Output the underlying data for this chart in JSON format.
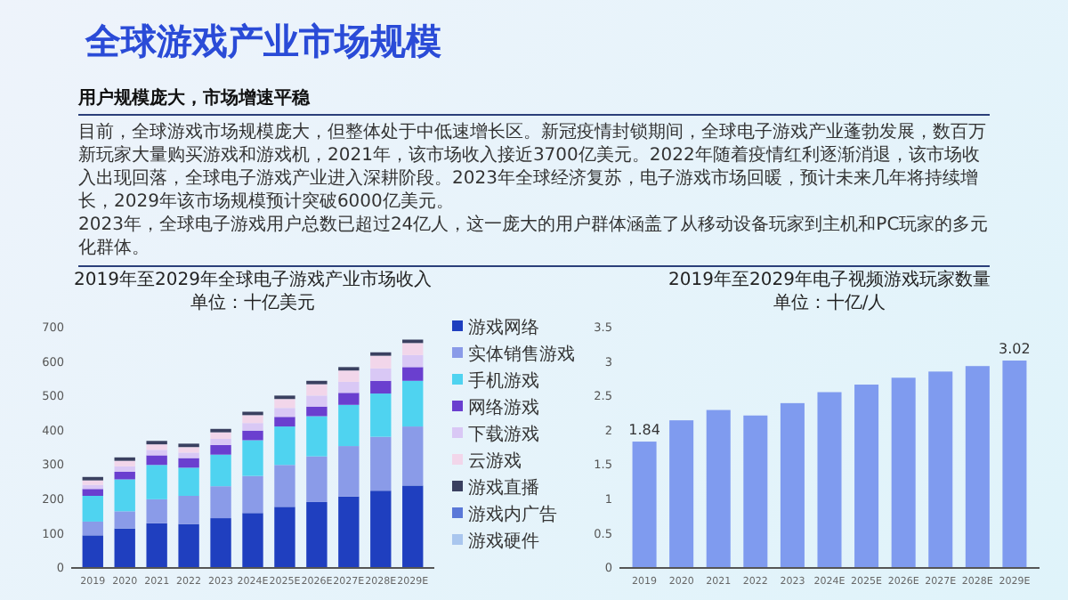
{
  "chart_data": [
    {
      "type": "other",
      "title": "全球游戏产业市场规模",
      "subtitle": "用户规模庞大，市场增速平稳",
      "annotations": [
        "目前，全球游戏市场规模庞大，但整体处于中低速增长区。新冠疫情封锁期间，全球电子游戏产业蓬勃发展，数百万新玩家大量购买游戏和游戏机，2021年，该市场收入接近3700亿美元。2022年随着疫情红利逐渐消退，该市场收入出现回落，全球电子游戏产业进入深耕阶段。2023年全球经济复苏，电子游戏市场回暖，预计未来几年将持续增长，2029年该市场规模预计突破6000亿美元。",
        "2023年，全球电子游戏用户总数已超过24亿人，这一庞大的用户群体涵盖了从移动设备玩家到主机和PC玩家的多元化群体。"
      ]
    },
    {
      "type": "bar",
      "stacked": true,
      "title": "2019年至2029年全球电子游戏产业市场收入",
      "subtitle": "单位：十亿美元",
      "categories": [
        "2019",
        "2020",
        "2021",
        "2022",
        "2023",
        "2024E",
        "2025E",
        "2026E",
        "2027E",
        "2028E",
        "2029E"
      ],
      "ylim": [
        0,
        700
      ],
      "yticks": [
        0,
        100,
        200,
        300,
        400,
        500,
        600,
        700
      ],
      "legend": "right",
      "grid": false,
      "series": [
        {
          "name": "游戏网络",
          "color": "#1f3fbf",
          "values": [
            95,
            115,
            130,
            128,
            145,
            160,
            178,
            192,
            208,
            225,
            240
          ]
        },
        {
          "name": "实体销售游戏",
          "color": "#8a9be8",
          "values": [
            40,
            50,
            70,
            82,
            93,
            108,
            122,
            133,
            147,
            157,
            172
          ]
        },
        {
          "name": "手机游戏",
          "color": "#4fd3f0",
          "values": [
            75,
            93,
            100,
            82,
            92,
            104,
            112,
            117,
            120,
            126,
            133
          ]
        },
        {
          "name": "网络游戏",
          "color": "#6a3fcf",
          "values": [
            20,
            22,
            28,
            28,
            28,
            28,
            28,
            28,
            35,
            37,
            40
          ]
        },
        {
          "name": "下载游戏",
          "color": "#d9c8f5",
          "values": [
            12,
            16,
            16,
            16,
            18,
            22,
            26,
            32,
            32,
            36,
            35
          ]
        },
        {
          "name": "云游戏",
          "color": "#f2d6ea",
          "values": [
            13,
            16,
            16,
            16,
            19,
            23,
            26,
            33,
            33,
            37,
            35
          ]
        },
        {
          "name": "游戏直播",
          "color": "#3a4060",
          "values": [
            10,
            10,
            10,
            10,
            10,
            10,
            10,
            10,
            10,
            10,
            10
          ]
        },
        {
          "name": "游戏内广告",
          "color": "#5a78d8",
          "values": [
            null,
            null,
            null,
            null,
            null,
            null,
            null,
            null,
            null,
            null,
            null
          ]
        },
        {
          "name": "游戏硬件",
          "color": "#a9c6ee",
          "values": [
            null,
            null,
            null,
            null,
            null,
            null,
            null,
            null,
            null,
            null,
            null
          ]
        }
      ]
    },
    {
      "type": "bar",
      "title": "2019年至2029年电子视频游戏玩家数量",
      "subtitle": "单位：十亿/人",
      "categories": [
        "2019",
        "2020",
        "2021",
        "2022",
        "2023",
        "2024E",
        "2025E",
        "2026E",
        "2027E",
        "2028E",
        "2029E"
      ],
      "ylim": [
        0,
        3.5
      ],
      "yticks": [
        0,
        0.5,
        1,
        1.5,
        2,
        2.5,
        3,
        3.5
      ],
      "grid": false,
      "legend": false,
      "series": [
        {
          "color": "#7f9bef",
          "values": [
            1.84,
            2.15,
            2.3,
            2.22,
            2.4,
            2.56,
            2.67,
            2.77,
            2.86,
            2.94,
            3.02
          ],
          "value_labels": [
            "1.84",
            null,
            null,
            null,
            null,
            null,
            null,
            null,
            null,
            null,
            "3.02"
          ]
        }
      ]
    }
  ]
}
